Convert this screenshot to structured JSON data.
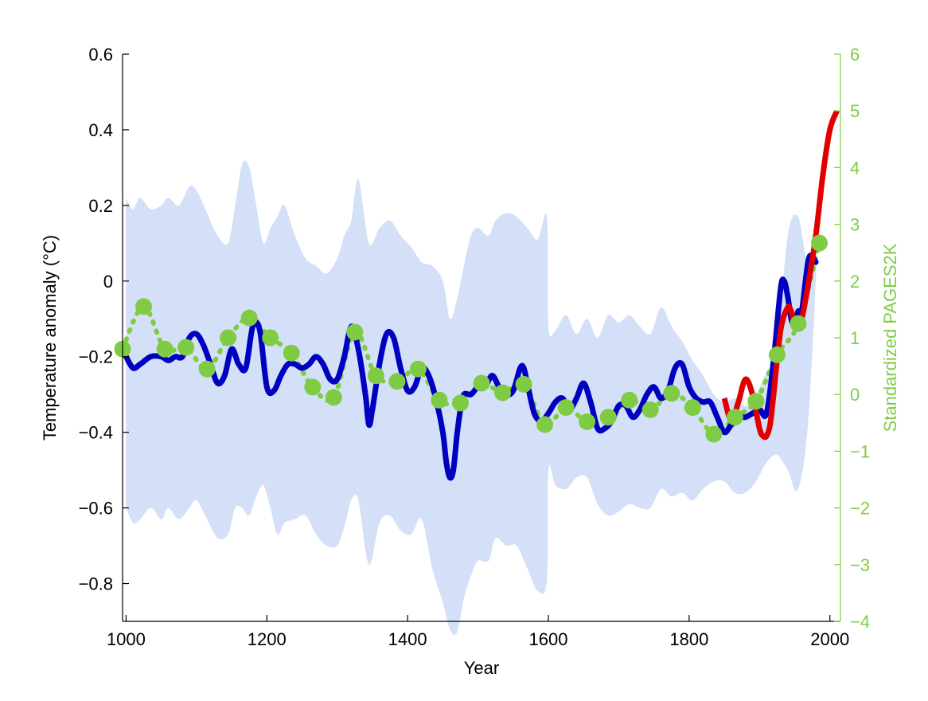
{
  "chart_data": {
    "type": "line",
    "xlabel": "Year",
    "ylabel": "Temperature anomaly (°C)",
    "y2label": "Standardized PAGES2K",
    "xlim": [
      995,
      2015
    ],
    "ylim": [
      -0.9,
      0.6
    ],
    "y2lim": [
      -4,
      6
    ],
    "x_ticks": [
      1000,
      1200,
      1400,
      1600,
      1800,
      2000
    ],
    "y_ticks": [
      -0.8,
      -0.6,
      -0.4,
      -0.2,
      0,
      0.2,
      0.4,
      0.6
    ],
    "y2_ticks": [
      -4,
      -3,
      -2,
      -1,
      0,
      1,
      2,
      3,
      4,
      5,
      6
    ],
    "x_tick_labels": [
      "1000",
      "1200",
      "1400",
      "1600",
      "1800",
      "2000"
    ],
    "y_tick_labels": [
      "−0.8",
      "−0.6",
      "−0.4",
      "−0.2",
      "0",
      "0.2",
      "0.4",
      "0.6"
    ],
    "y2_tick_labels": [
      "−4",
      "−3",
      "−2",
      "−1",
      "0",
      "1",
      "2",
      "3",
      "4",
      "5",
      "6"
    ],
    "grid": false,
    "colors": {
      "band": "#d4e0f7",
      "reconstruction": "#0000c0",
      "instrumental": "#e00000",
      "pages2k": "#7fcc44",
      "axis": "#000000",
      "right_axis": "#7fcc44"
    },
    "series": [
      {
        "kind": "band",
        "axis": "left",
        "x": [
          1000,
          1010,
          1020,
          1035,
          1050,
          1060,
          1075,
          1090,
          1100,
          1115,
          1130,
          1145,
          1155,
          1165,
          1175,
          1185,
          1195,
          1205,
          1215,
          1225,
          1240,
          1255,
          1270,
          1285,
          1300,
          1310,
          1320,
          1330,
          1345,
          1360,
          1375,
          1390,
          1405,
          1420,
          1435,
          1450,
          1460,
          1470,
          1480,
          1490,
          1500,
          1515,
          1525,
          1540,
          1555,
          1570,
          1585,
          1598,
          1600,
          1610,
          1625,
          1640,
          1655,
          1670,
          1685,
          1700,
          1715,
          1730,
          1745,
          1760,
          1775,
          1790,
          1805,
          1820,
          1835,
          1850,
          1865,
          1880,
          1895,
          1910,
          1925,
          1940,
          1955,
          1970,
          1985
        ],
        "upper": [
          0.22,
          0.19,
          0.22,
          0.19,
          0.2,
          0.22,
          0.2,
          0.25,
          0.24,
          0.18,
          0.12,
          0.1,
          0.2,
          0.31,
          0.3,
          0.2,
          0.1,
          0.14,
          0.17,
          0.2,
          0.12,
          0.06,
          0.04,
          0.02,
          0.06,
          0.12,
          0.16,
          0.27,
          0.1,
          0.14,
          0.16,
          0.12,
          0.09,
          0.05,
          0.04,
          0.0,
          -0.1,
          -0.05,
          0.04,
          0.12,
          0.14,
          0.12,
          0.16,
          0.18,
          0.17,
          0.14,
          0.11,
          0.17,
          -0.12,
          -0.13,
          -0.09,
          -0.14,
          -0.1,
          -0.15,
          -0.09,
          -0.11,
          -0.09,
          -0.12,
          -0.14,
          -0.07,
          -0.12,
          -0.16,
          -0.21,
          -0.25,
          -0.3,
          -0.32,
          -0.31,
          -0.33,
          -0.3,
          -0.24,
          -0.18,
          0.12,
          0.17,
          0.04,
          0.2
        ],
        "lower": [
          -0.6,
          -0.64,
          -0.63,
          -0.6,
          -0.63,
          -0.6,
          -0.63,
          -0.6,
          -0.58,
          -0.63,
          -0.68,
          -0.67,
          -0.6,
          -0.6,
          -0.62,
          -0.57,
          -0.54,
          -0.6,
          -0.67,
          -0.64,
          -0.63,
          -0.62,
          -0.67,
          -0.7,
          -0.7,
          -0.65,
          -0.58,
          -0.58,
          -0.75,
          -0.64,
          -0.62,
          -0.66,
          -0.67,
          -0.63,
          -0.76,
          -0.85,
          -0.92,
          -0.93,
          -0.84,
          -0.78,
          -0.74,
          -0.74,
          -0.68,
          -0.7,
          -0.7,
          -0.76,
          -0.82,
          -0.79,
          -0.5,
          -0.54,
          -0.55,
          -0.52,
          -0.52,
          -0.59,
          -0.62,
          -0.61,
          -0.59,
          -0.6,
          -0.6,
          -0.55,
          -0.57,
          -0.56,
          -0.58,
          -0.55,
          -0.53,
          -0.53,
          -0.56,
          -0.56,
          -0.53,
          -0.48,
          -0.46,
          -0.5,
          -0.55,
          -0.35,
          0.2
        ]
      },
      {
        "kind": "line",
        "axis": "left",
        "x": [
          1000,
          1010,
          1020,
          1035,
          1050,
          1060,
          1070,
          1080,
          1090,
          1100,
          1110,
          1120,
          1130,
          1140,
          1150,
          1160,
          1170,
          1180,
          1190,
          1200,
          1210,
          1220,
          1230,
          1240,
          1250,
          1260,
          1270,
          1280,
          1290,
          1300,
          1310,
          1320,
          1330,
          1340,
          1345,
          1350,
          1360,
          1370,
          1380,
          1390,
          1400,
          1410,
          1420,
          1430,
          1440,
          1450,
          1455,
          1460,
          1465,
          1470,
          1475,
          1480,
          1490,
          1500,
          1510,
          1520,
          1530,
          1540,
          1550,
          1560,
          1565,
          1570,
          1580,
          1590,
          1600,
          1610,
          1620,
          1630,
          1640,
          1650,
          1660,
          1670,
          1680,
          1690,
          1700,
          1710,
          1720,
          1730,
          1740,
          1750,
          1760,
          1770,
          1780,
          1790,
          1800,
          1810,
          1820,
          1830,
          1840,
          1850,
          1860,
          1870,
          1880,
          1890,
          1900,
          1910,
          1920,
          1930,
          1935,
          1940,
          1945,
          1950,
          1955,
          1960,
          1970,
          1980
        ],
        "y": [
          -0.2,
          -0.23,
          -0.22,
          -0.2,
          -0.2,
          -0.21,
          -0.2,
          -0.2,
          -0.15,
          -0.14,
          -0.17,
          -0.22,
          -0.27,
          -0.25,
          -0.18,
          -0.22,
          -0.23,
          -0.12,
          -0.13,
          -0.28,
          -0.29,
          -0.25,
          -0.22,
          -0.22,
          -0.23,
          -0.22,
          -0.2,
          -0.22,
          -0.26,
          -0.26,
          -0.2,
          -0.12,
          -0.18,
          -0.3,
          -0.38,
          -0.34,
          -0.22,
          -0.14,
          -0.15,
          -0.23,
          -0.29,
          -0.28,
          -0.23,
          -0.25,
          -0.31,
          -0.4,
          -0.48,
          -0.52,
          -0.5,
          -0.41,
          -0.34,
          -0.3,
          -0.3,
          -0.28,
          -0.28,
          -0.25,
          -0.28,
          -0.3,
          -0.29,
          -0.23,
          -0.23,
          -0.27,
          -0.35,
          -0.37,
          -0.35,
          -0.32,
          -0.31,
          -0.34,
          -0.31,
          -0.27,
          -0.32,
          -0.39,
          -0.39,
          -0.37,
          -0.33,
          -0.33,
          -0.36,
          -0.34,
          -0.3,
          -0.28,
          -0.31,
          -0.29,
          -0.23,
          -0.22,
          -0.28,
          -0.31,
          -0.32,
          -0.32,
          -0.36,
          -0.4,
          -0.38,
          -0.36,
          -0.36,
          -0.35,
          -0.34,
          -0.35,
          -0.21,
          -0.02,
          0.0,
          -0.04,
          -0.1,
          -0.12,
          -0.08,
          -0.08,
          0.06,
          0.05
        ]
      },
      {
        "kind": "line",
        "axis": "left",
        "x": [
          1850,
          1860,
          1870,
          1880,
          1890,
          1900,
          1905,
          1910,
          1915,
          1920,
          1930,
          1940,
          1945,
          1950,
          1955,
          1960,
          1970,
          1980,
          1990,
          2000,
          2010
        ],
        "y": [
          -0.31,
          -0.37,
          -0.32,
          -0.26,
          -0.3,
          -0.39,
          -0.41,
          -0.41,
          -0.38,
          -0.3,
          -0.13,
          -0.07,
          -0.08,
          -0.11,
          -0.12,
          -0.1,
          0.0,
          0.12,
          0.28,
          0.4,
          0.45
        ]
      },
      {
        "kind": "dots",
        "axis": "right",
        "x": [
          995,
          1025,
          1055,
          1085,
          1115,
          1145,
          1175,
          1205,
          1235,
          1265,
          1295,
          1325,
          1355,
          1385,
          1415,
          1445,
          1475,
          1505,
          1535,
          1565,
          1595,
          1625,
          1655,
          1685,
          1715,
          1745,
          1775,
          1805,
          1835,
          1865,
          1895,
          1925,
          1955,
          1985
        ],
        "y": [
          0.8,
          1.55,
          0.8,
          0.83,
          0.45,
          1.0,
          1.35,
          1.0,
          0.73,
          0.13,
          -0.05,
          1.1,
          0.33,
          0.23,
          0.45,
          -0.1,
          -0.15,
          0.2,
          0.03,
          0.18,
          -0.53,
          -0.23,
          -0.48,
          -0.4,
          -0.1,
          -0.27,
          0.02,
          -0.23,
          -0.7,
          -0.4,
          -0.12,
          0.7,
          1.25,
          2.67
        ]
      }
    ]
  }
}
